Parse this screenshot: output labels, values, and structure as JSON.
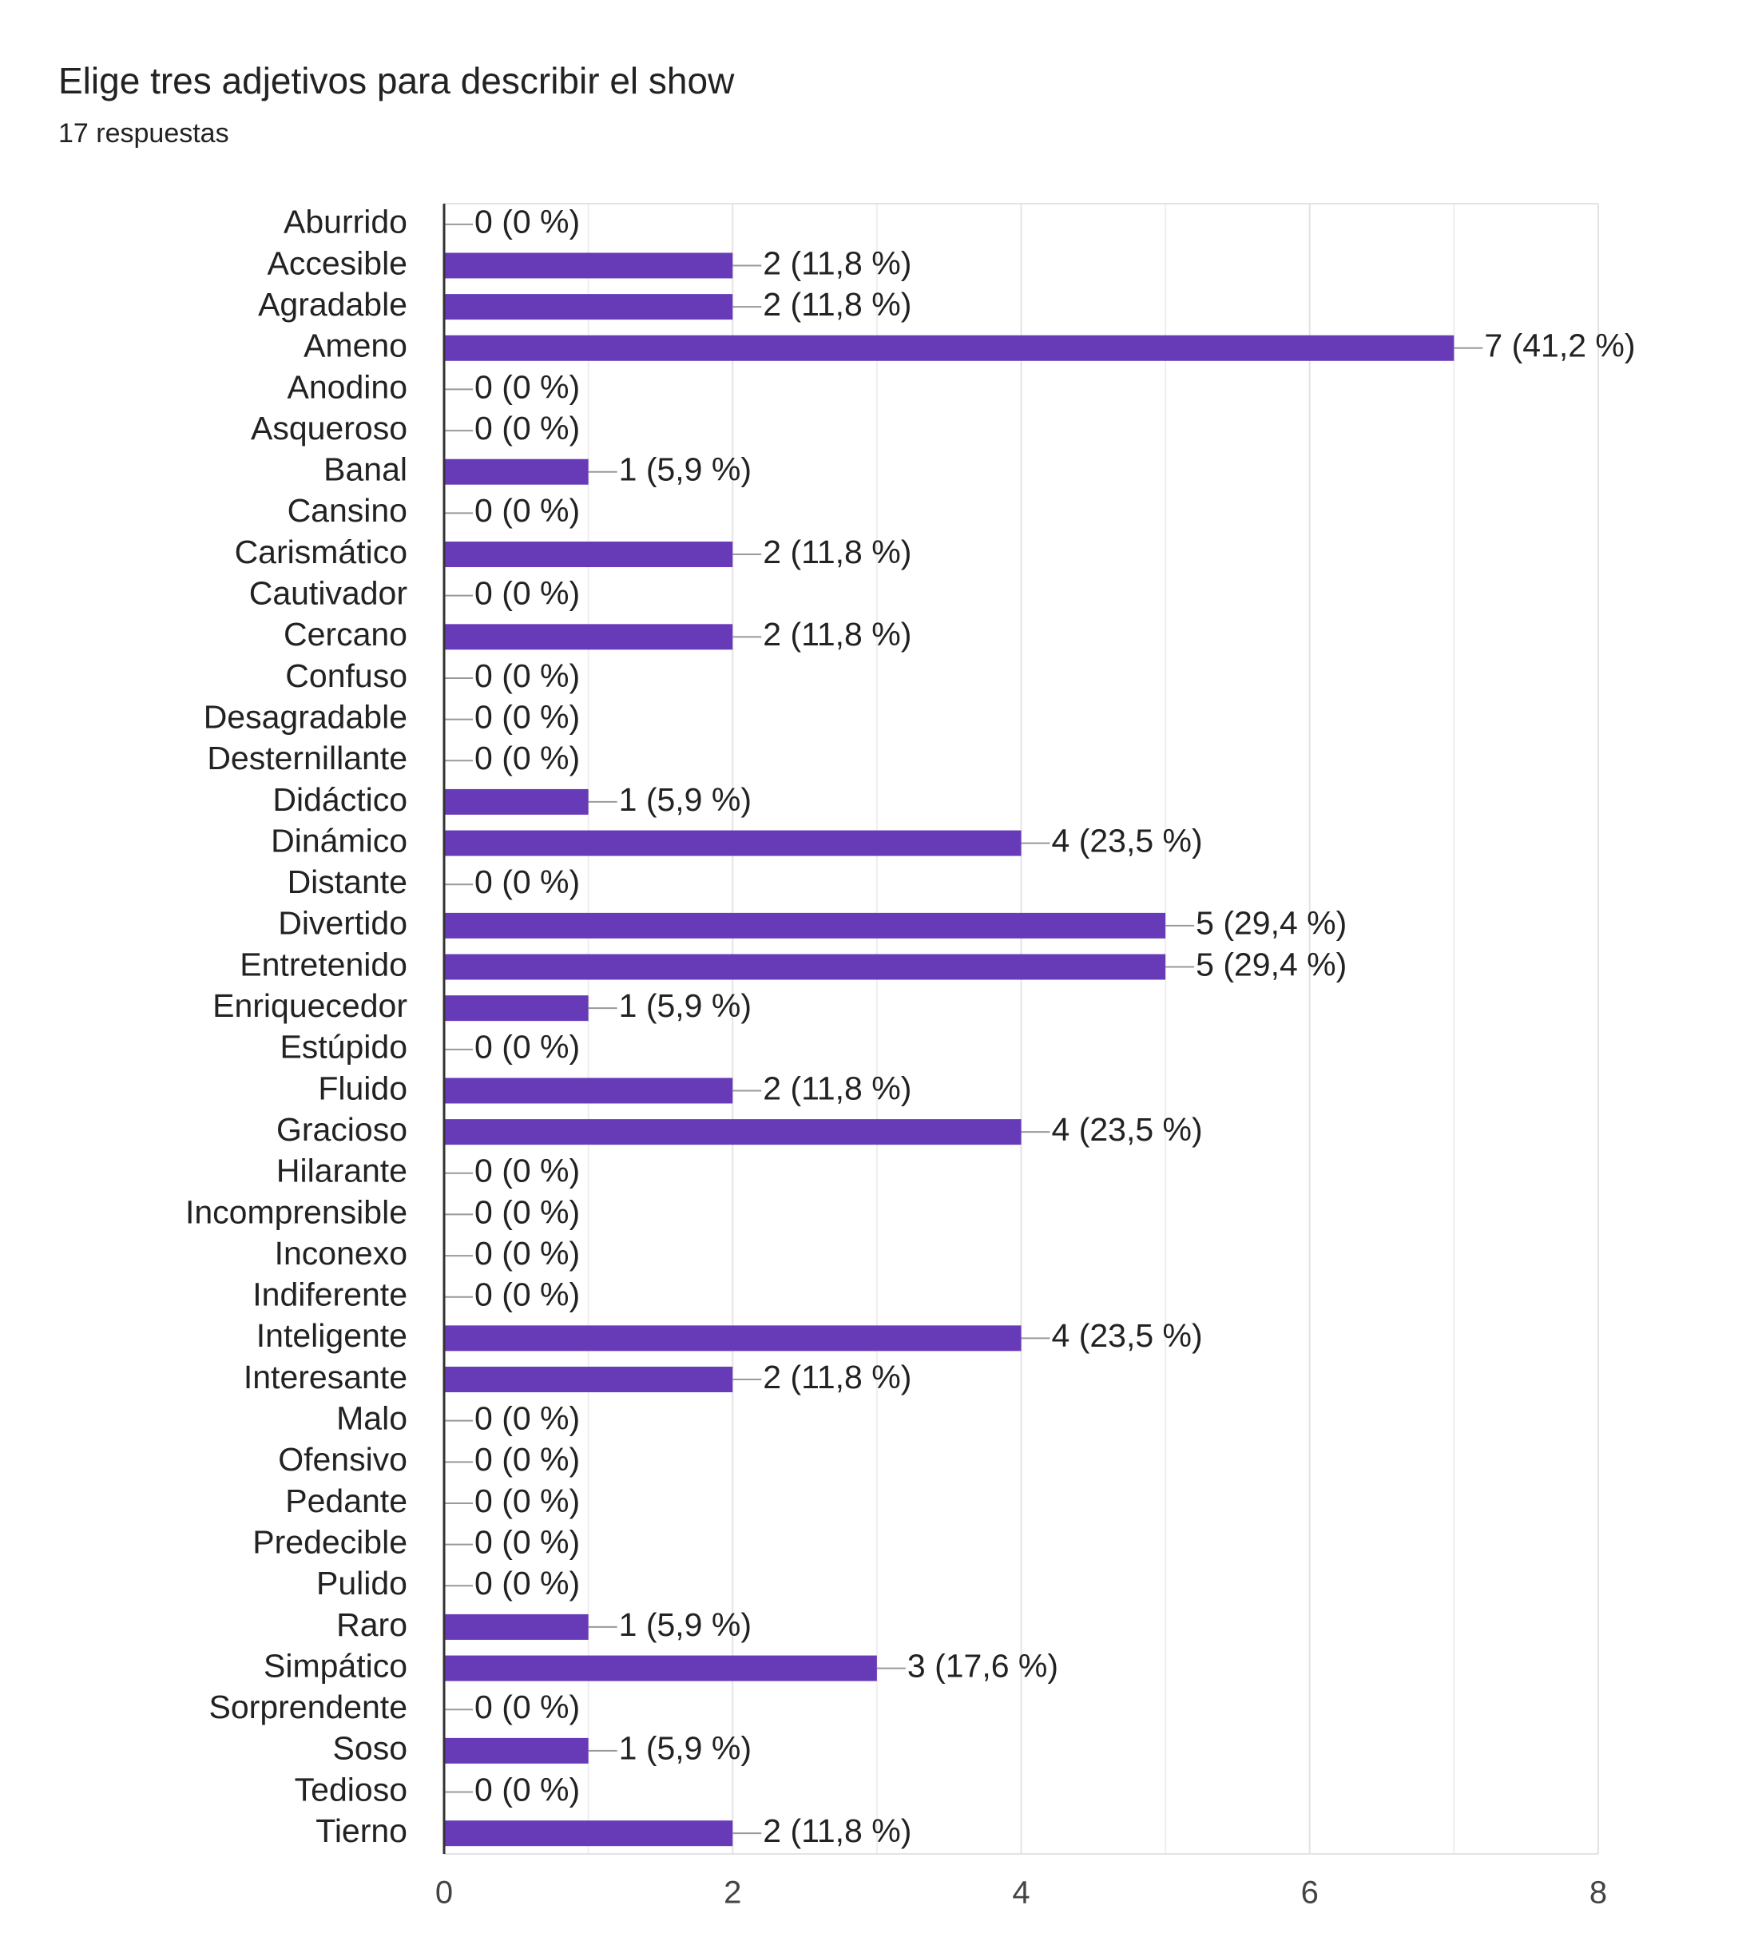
{
  "chart_data": {
    "type": "bar",
    "orientation": "horizontal",
    "title": "Elige tres adjetivos para describir el show",
    "subtitle": "17 respuestas",
    "categories": [
      "Aburrido",
      "Accesible",
      "Agradable",
      "Ameno",
      "Anodino",
      "Asqueroso",
      "Banal",
      "Cansino",
      "Carismático",
      "Cautivador",
      "Cercano",
      "Confuso",
      "Desagradable",
      "Desternillante",
      "Didáctico",
      "Dinámico",
      "Distante",
      "Divertido",
      "Entretenido",
      "Enriquecedor",
      "Estúpido",
      "Fluido",
      "Gracioso",
      "Hilarante",
      "Incomprensible",
      "Inconexo",
      "Indiferente",
      "Inteligente",
      "Interesante",
      "Malo",
      "Ofensivo",
      "Pedante",
      "Predecible",
      "Pulido",
      "Raro",
      "Simpático",
      "Sorprendente",
      "Soso",
      "Tedioso",
      "Tierno"
    ],
    "values": [
      0,
      2,
      2,
      7,
      0,
      0,
      1,
      0,
      2,
      0,
      2,
      0,
      0,
      0,
      1,
      4,
      0,
      5,
      5,
      1,
      0,
      2,
      4,
      0,
      0,
      0,
      0,
      4,
      2,
      0,
      0,
      0,
      0,
      0,
      1,
      3,
      0,
      1,
      0,
      2
    ],
    "value_labels": [
      "0 (0 %)",
      "2 (11,8 %)",
      "2 (11,8 %)",
      "7 (41,2 %)",
      "0 (0 %)",
      "0 (0 %)",
      "1 (5,9 %)",
      "0 (0 %)",
      "2 (11,8 %)",
      "0 (0 %)",
      "2 (11,8 %)",
      "0 (0 %)",
      "0 (0 %)",
      "0 (0 %)",
      "1 (5,9 %)",
      "4 (23,5 %)",
      "0 (0 %)",
      "5 (29,4 %)",
      "5 (29,4 %)",
      "1 (5,9 %)",
      "0 (0 %)",
      "2 (11,8 %)",
      "4 (23,5 %)",
      "0 (0 %)",
      "0 (0 %)",
      "0 (0 %)",
      "0 (0 %)",
      "4 (23,5 %)",
      "2 (11,8 %)",
      "0 (0 %)",
      "0 (0 %)",
      "0 (0 %)",
      "0 (0 %)",
      "0 (0 %)",
      "1 (5,9 %)",
      "3 (17,6 %)",
      "0 (0 %)",
      "1 (5,9 %)",
      "0 (0 %)",
      "2 (11,8 %)"
    ],
    "color": "#673ab7",
    "xlim": [
      0,
      8
    ],
    "xticks": [
      0,
      2,
      4,
      6,
      8
    ],
    "minor_xticks": [
      1,
      3,
      5,
      7
    ],
    "grid": true
  }
}
